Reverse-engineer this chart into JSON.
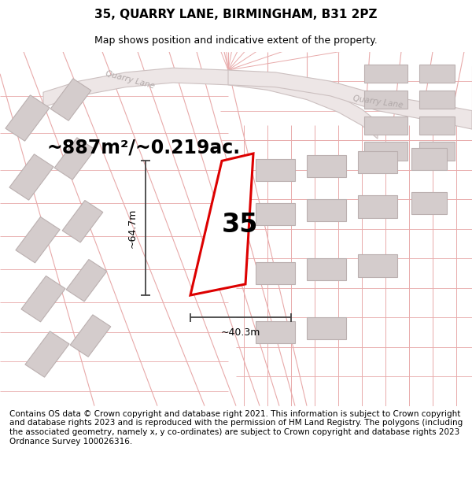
{
  "title": "35, QUARRY LANE, BIRMINGHAM, B31 2PZ",
  "subtitle": "Map shows position and indicative extent of the property.",
  "footer": "Contains OS data © Crown copyright and database right 2021. This information is subject to Crown copyright and database rights 2023 and is reproduced with the permission of HM Land Registry. The polygons (including the associated geometry, namely x, y co-ordinates) are subject to Crown copyright and database rights 2023 Ordnance Survey 100026316.",
  "area_label": "~887m²/~0.219ac.",
  "width_label": "~40.3m",
  "height_label": "~64.7m",
  "number_label": "35",
  "bg_color": "#ffffff",
  "map_bg": "#f7f3f3",
  "plot_outline_color": "#dd0000",
  "plot_fill_color": "#ffffff",
  "parcel_line_color": "#e8aaaa",
  "building_color": "#d4cccc",
  "building_edge": "#bbb0b0",
  "road_fill_color": "#ede6e6",
  "road_edge_color": "#ccc0c0",
  "road_label_color": "#b0a8a8",
  "dim_line_color": "#444444",
  "title_fontsize": 11,
  "subtitle_fontsize": 9,
  "footer_fontsize": 7.5,
  "area_fontsize": 17,
  "number_fontsize": 24,
  "quarry_lane_label_1": "Quarry Lane",
  "quarry_lane_label_2": "Quarry Lane"
}
